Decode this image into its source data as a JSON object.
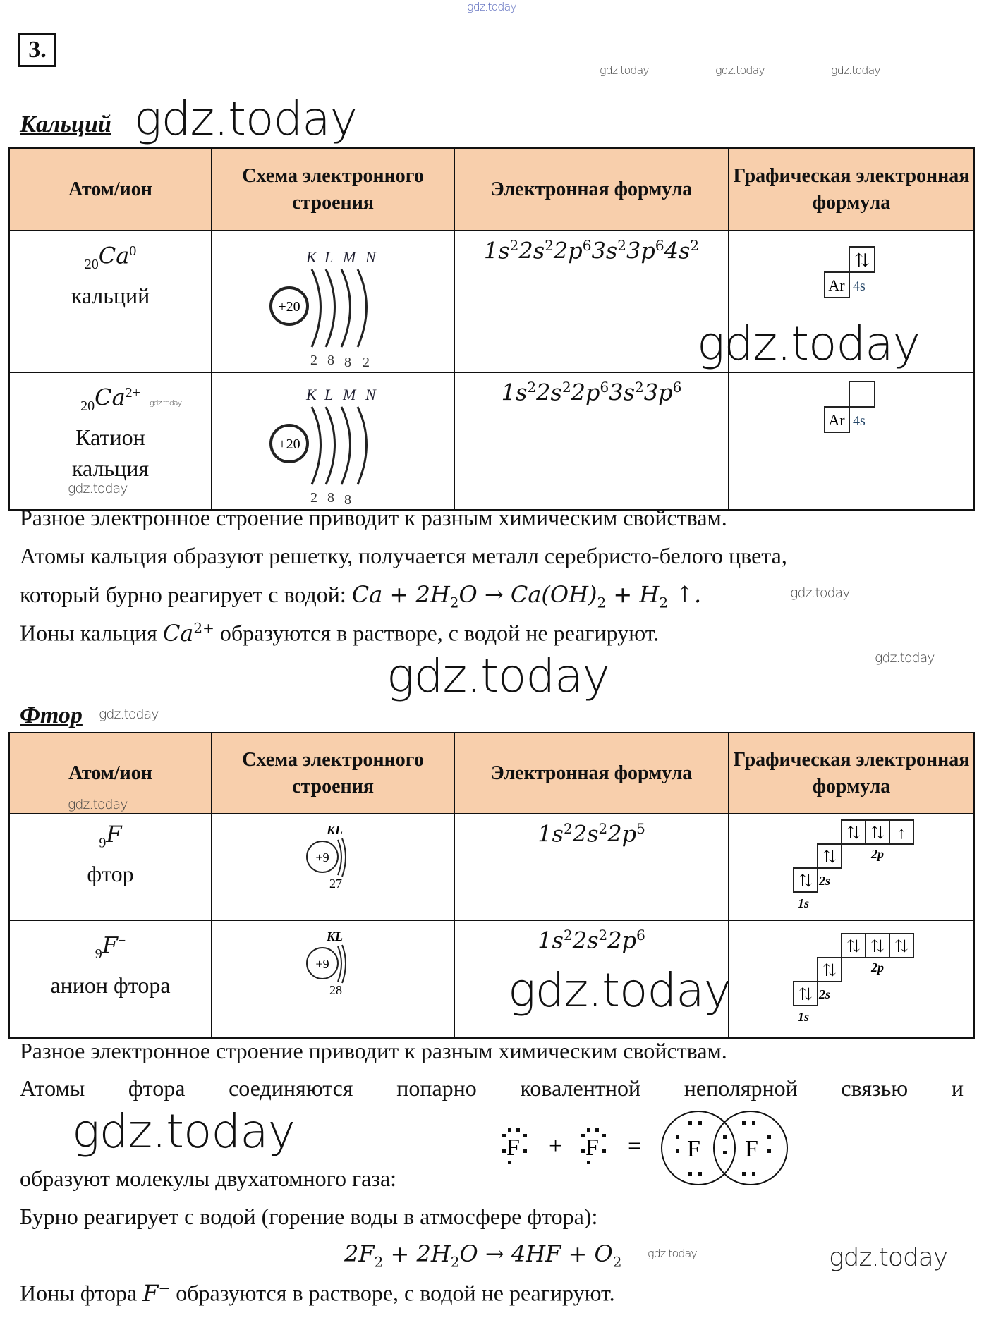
{
  "task_number": "3.",
  "watermark": "gdz.today",
  "table_headers": [
    "Атом/ион",
    "Схема электронного строения",
    "Электронная формула",
    "Графическая электронная формула"
  ],
  "calcium": {
    "title": "Кальций",
    "rows": [
      {
        "z": "20",
        "symbol": "Ca",
        "charge": "0",
        "name": "кальций",
        "shells": [
          "K",
          "L",
          "M",
          "N"
        ],
        "nucleus": "+20",
        "electrons": [
          "2",
          "8",
          "8",
          "2"
        ],
        "formula": [
          [
            "1s",
            "2"
          ],
          [
            "2s",
            "2"
          ],
          [
            "2p",
            "6"
          ],
          [
            "3s",
            "2"
          ],
          [
            "3p",
            "6"
          ],
          [
            "4s",
            "2"
          ]
        ],
        "core": "Ar",
        "orbital": "4s"
      },
      {
        "z": "20",
        "symbol": "Ca",
        "charge": "2+",
        "name": "Катион кальция",
        "shells": [
          "K",
          "L",
          "M",
          "N"
        ],
        "nucleus": "+20",
        "electrons": [
          "2",
          "8",
          "8"
        ],
        "formula": [
          [
            "1s",
            "2"
          ],
          [
            "2s",
            "2"
          ],
          [
            "2p",
            "6"
          ],
          [
            "3s",
            "2"
          ],
          [
            "3p",
            "6"
          ]
        ],
        "core": "Ar",
        "orbital": "4s"
      }
    ],
    "text": [
      "Разное электронное строение приводит к разным химическим свойствам.",
      "Атомы кальция образуют решетку, получается металл серебристо-белого цвета,",
      "который бурно реагирует с водой: ",
      "Ионы кальция ",
      " образуются в растворе, с водой не реагируют."
    ]
  },
  "fluorine": {
    "title": "Фтор",
    "rows": [
      {
        "z": "9",
        "symbol": "F",
        "charge": "",
        "name": "фтор",
        "shells": "KL",
        "nucleus": "+9",
        "electrons": "27",
        "formula": [
          [
            "1s",
            "2"
          ],
          [
            "2s",
            "2"
          ],
          [
            "2p",
            "5"
          ]
        ],
        "levels": [
          "1s",
          "2s",
          "2p"
        ]
      },
      {
        "z": "9",
        "symbol": "F",
        "charge": "−",
        "name": "анион фтора",
        "shells": "KL",
        "nucleus": "+9",
        "electrons": "28",
        "formula": [
          [
            "1s",
            "2"
          ],
          [
            "2s",
            "2"
          ],
          [
            "2p",
            "6"
          ]
        ],
        "levels": [
          "1s",
          "2s",
          "2p"
        ]
      }
    ],
    "text": [
      "Разное электронное строение приводит к разным химическим свойствам.",
      [
        "Атомы",
        "фтора",
        "соединяются",
        "попарно",
        "ковалентной",
        "неполярной",
        "связью",
        "и"
      ],
      "образуют молекулы двухатомного газа:",
      "Бурно реагирует с водой (горение воды в атмосфере фтора):",
      "Ионы фтора ",
      " образуются в растворе, с водой не реагируют."
    ],
    "lewis": {
      "atom": "F",
      "plus": "+",
      "equals": "="
    }
  }
}
